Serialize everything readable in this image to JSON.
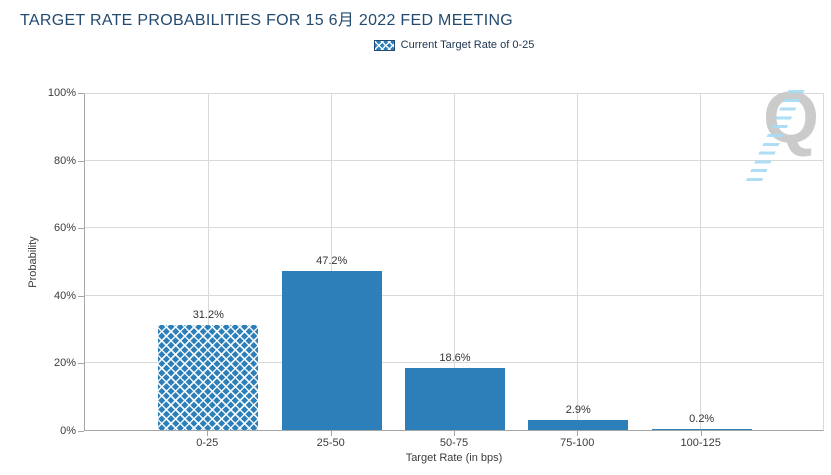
{
  "title": "TARGET RATE PROBABILITIES FOR 15 6月 2022 FED MEETING",
  "legend": {
    "label": "Current Target Rate of 0-25",
    "swatch_style": "blue-white-crosshatch"
  },
  "watermark": {
    "letter": "Q"
  },
  "axes": {
    "xlabel": "Target Rate (in bps)",
    "ylabel": "Probability"
  },
  "chart_data": {
    "type": "bar",
    "title": "TARGET RATE PROBABILITIES FOR 15 6月 2022 FED MEETING",
    "xlabel": "Target Rate (in bps)",
    "ylabel": "Probability",
    "categories": [
      "0-25",
      "25-50",
      "50-75",
      "75-100",
      "100-125"
    ],
    "values": [
      31.2,
      47.2,
      18.6,
      2.9,
      0.2
    ],
    "value_labels": [
      "31.2%",
      "47.2%",
      "18.6%",
      "2.9%",
      "0.2%"
    ],
    "bar_styles": [
      "crosshatch",
      "solid",
      "solid",
      "solid",
      "solid"
    ],
    "ylim": [
      0,
      100
    ],
    "yticks": [
      0,
      20,
      40,
      60,
      80,
      100
    ],
    "ytick_labels_top_to_bottom": [
      "100%",
      "80%",
      "60%",
      "40%",
      "20%",
      "0%"
    ],
    "grid": "horizontal and vertical light-gray gridlines, vertical lines at category centers",
    "legend_position": "top-center",
    "legend_entries": [
      "Current Target Rate of 0-25"
    ],
    "colors": {
      "bar": "#2C7FB8",
      "hatch_lines": "#FFFFFF",
      "title_text": "#234A70",
      "legend_text": "#1D3550",
      "gridline": "#D9D9D9",
      "axis_line": "#A6A6A6",
      "tick_text": "#3C3C3C",
      "watermark_gray": "#CBCBCB",
      "watermark_blue": "#A9DCF3",
      "background": "#FFFFFF"
    }
  }
}
